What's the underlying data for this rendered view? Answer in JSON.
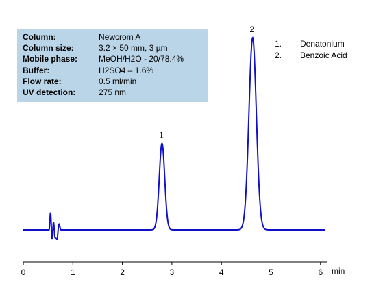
{
  "conditions": [
    {
      "label": "Column:",
      "value": "Newcrom A"
    },
    {
      "label": "Column size:",
      "value": "3.2 × 50 mm, 3 µm"
    },
    {
      "label": "Mobile phase:",
      "value": "MeOH/H2O - 20/78.4%"
    },
    {
      "label": "Buffer:",
      "value": "H2SO4 – 1.6%"
    },
    {
      "label": "Flow rate:",
      "value": "0.5 ml/min"
    },
    {
      "label": "UV detection:",
      "value": "275 nm"
    }
  ],
  "legend": [
    {
      "num": "1.",
      "name": "Denatonium"
    },
    {
      "num": "2.",
      "name": "Benzoic Acid"
    }
  ],
  "chart_data": {
    "type": "line",
    "xlabel": "min",
    "xlim": [
      0,
      6.1
    ],
    "xticks": [
      "0",
      "1",
      "2",
      "3",
      "4",
      "5",
      "6"
    ],
    "grid": false,
    "line_color": "#1010c8",
    "axis_color": "#000000",
    "baseline": 0,
    "y_max": 1.0,
    "peaks": [
      {
        "label": "1",
        "rt": 2.8,
        "height": 0.45,
        "width": 0.055
      },
      {
        "label": "2",
        "rt": 4.63,
        "height": 1.0,
        "width": 0.075
      }
    ],
    "disturbance": [
      {
        "t": 0.52,
        "v": 0.0
      },
      {
        "t": 0.55,
        "v": 0.09
      },
      {
        "t": 0.58,
        "v": -0.05
      },
      {
        "t": 0.61,
        "v": 0.04
      },
      {
        "t": 0.64,
        "v": -0.04
      },
      {
        "t": 0.68,
        "v": -0.05
      },
      {
        "t": 0.72,
        "v": 0.03
      },
      {
        "t": 0.76,
        "v": 0.0
      }
    ]
  }
}
